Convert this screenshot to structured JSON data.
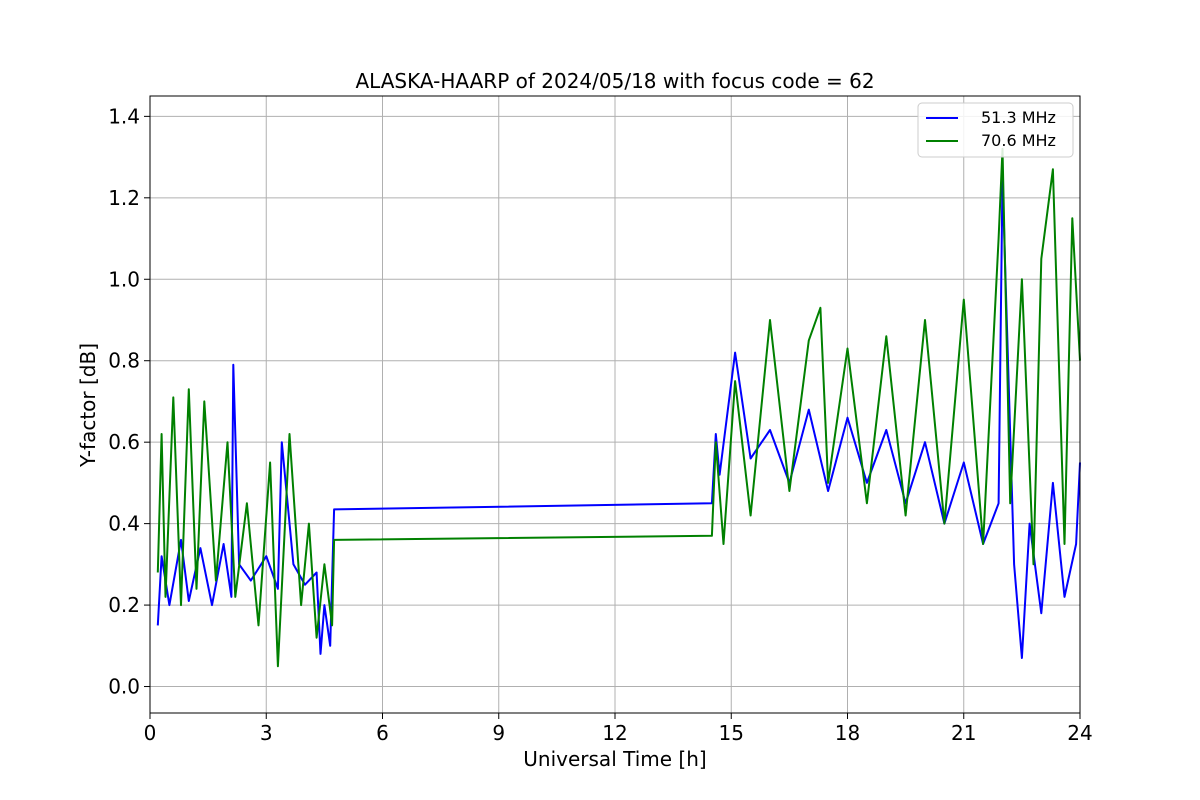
{
  "chart_data": {
    "type": "line",
    "title": "ALASKA-HAARP of 2024/05/18 with focus code = 62",
    "xlabel": "Universal Time [h]",
    "ylabel": "Y-factor [dB]",
    "xlim": [
      0,
      24
    ],
    "ylim": [
      -0.065,
      1.45
    ],
    "xticks": [
      0,
      3,
      6,
      9,
      12,
      15,
      18,
      21,
      24
    ],
    "xtick_labels": [
      "0",
      "3",
      "6",
      "9",
      "12",
      "15",
      "18",
      "21",
      "24"
    ],
    "yticks": [
      0.0,
      0.2,
      0.4,
      0.6,
      0.8,
      1.0,
      1.2,
      1.4
    ],
    "ytick_labels": [
      "0.0",
      "0.2",
      "0.4",
      "0.6",
      "0.8",
      "1.0",
      "1.2",
      "1.4"
    ],
    "grid": true,
    "legend_position": "top-right",
    "series": [
      {
        "name": "51.3 MHz",
        "color": "#0000ff",
        "x": [
          0.2,
          0.3,
          0.5,
          0.8,
          1.0,
          1.3,
          1.6,
          1.9,
          2.1,
          2.15,
          2.3,
          2.6,
          3.0,
          3.3,
          3.4,
          3.7,
          4.0,
          4.3,
          4.4,
          4.5,
          4.65,
          4.75,
          14.5,
          14.6,
          14.7,
          15.1,
          15.5,
          16.0,
          16.5,
          17.0,
          17.5,
          18.0,
          18.5,
          19.0,
          19.5,
          20.0,
          20.5,
          21.0,
          21.5,
          21.9,
          22.0,
          22.3,
          22.5,
          22.7,
          23.0,
          23.3,
          23.6,
          23.9,
          24.0
        ],
        "values": [
          0.15,
          0.32,
          0.2,
          0.36,
          0.21,
          0.34,
          0.2,
          0.35,
          0.22,
          0.79,
          0.3,
          0.26,
          0.32,
          0.24,
          0.6,
          0.3,
          0.25,
          0.28,
          0.08,
          0.2,
          0.1,
          0.435,
          0.45,
          0.62,
          0.52,
          0.82,
          0.56,
          0.63,
          0.5,
          0.68,
          0.48,
          0.66,
          0.5,
          0.63,
          0.45,
          0.6,
          0.4,
          0.55,
          0.35,
          0.45,
          1.25,
          0.3,
          0.07,
          0.4,
          0.18,
          0.5,
          0.22,
          0.35,
          0.55
        ]
      },
      {
        "name": "70.6 MHz",
        "color": "#008000",
        "x": [
          0.2,
          0.3,
          0.4,
          0.6,
          0.8,
          1.0,
          1.2,
          1.4,
          1.7,
          2.0,
          2.2,
          2.5,
          2.8,
          3.1,
          3.3,
          3.6,
          3.9,
          4.1,
          4.3,
          4.5,
          4.7,
          4.75,
          14.5,
          14.6,
          14.8,
          15.1,
          15.5,
          16.0,
          16.5,
          17.0,
          17.3,
          17.5,
          18.0,
          18.5,
          19.0,
          19.5,
          20.0,
          20.5,
          21.0,
          21.5,
          21.9,
          22.0,
          22.2,
          22.5,
          22.8,
          23.0,
          23.3,
          23.6,
          23.8,
          24.0
        ],
        "values": [
          0.28,
          0.62,
          0.22,
          0.71,
          0.2,
          0.73,
          0.24,
          0.7,
          0.26,
          0.6,
          0.22,
          0.45,
          0.15,
          0.55,
          0.05,
          0.62,
          0.2,
          0.4,
          0.12,
          0.3,
          0.15,
          0.36,
          0.37,
          0.6,
          0.35,
          0.75,
          0.42,
          0.9,
          0.48,
          0.85,
          0.93,
          0.5,
          0.83,
          0.45,
          0.86,
          0.42,
          0.9,
          0.4,
          0.95,
          0.35,
          1.1,
          1.32,
          0.45,
          1.0,
          0.3,
          1.05,
          1.27,
          0.35,
          1.15,
          0.8
        ]
      }
    ]
  }
}
